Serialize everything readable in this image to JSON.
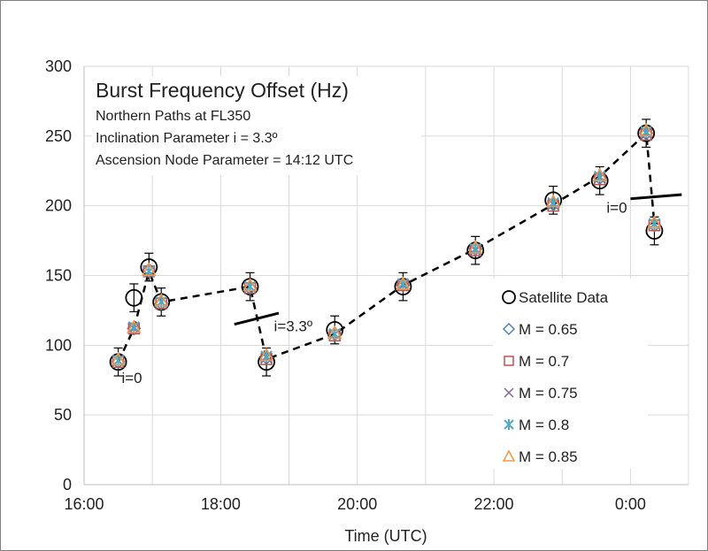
{
  "chart_data": {
    "type": "scatter",
    "title": "Burst Frequency Offset (Hz)",
    "subtitles": [
      "Northern Paths at FL350",
      "Inclination Parameter i = 3.3º",
      "Ascension Node  Parameter = 14:12 UTC"
    ],
    "xlabel": "Time (UTC)",
    "ylabel": "",
    "xlim": [
      16.0,
      24.85
    ],
    "ylim": [
      0,
      300
    ],
    "x_ticks": [
      16,
      18,
      20,
      22,
      24
    ],
    "x_tick_labels": [
      "16:00",
      "18:00",
      "20:00",
      "22:00",
      "0:00"
    ],
    "y_ticks": [
      0,
      50,
      100,
      150,
      200,
      250,
      300
    ],
    "y_tick_labels": [
      "0",
      "50",
      "100",
      "150",
      "200",
      "250",
      "300"
    ],
    "grid": true,
    "legend_position": "right",
    "satellite_data": {
      "name": "Satellite Data",
      "x": [
        16.5,
        16.73,
        16.95,
        17.13,
        18.43,
        18.67,
        19.67,
        20.67,
        21.73,
        22.87,
        23.55,
        24.23,
        24.35
      ],
      "y": [
        88,
        134,
        156,
        131,
        142,
        88,
        111,
        142,
        168,
        204,
        218,
        252,
        182
      ],
      "err": [
        10,
        10,
        10,
        10,
        10,
        10,
        10,
        10,
        10,
        10,
        10,
        10,
        10
      ]
    },
    "model_x": [
      16.5,
      16.73,
      16.95,
      17.13,
      18.43,
      18.67,
      19.67,
      20.67,
      21.73,
      22.87,
      23.55,
      24.23,
      24.35
    ],
    "series": [
      {
        "name": "M = 0.65",
        "marker": "diamond",
        "color": "#4f81bd",
        "values": [
          88,
          112,
          154,
          130,
          141,
          91,
          108,
          143,
          169,
          201,
          220,
          252,
          186
        ]
      },
      {
        "name": "M = 0.7",
        "marker": "square",
        "color": "#c0504d",
        "values": [
          88,
          112,
          153,
          130,
          141,
          90,
          107,
          143,
          168,
          200,
          219,
          251,
          186
        ]
      },
      {
        "name": "M = 0.75",
        "marker": "x",
        "color": "#8064a2",
        "values": [
          89,
          112,
          153,
          131,
          142,
          91,
          108,
          143,
          168,
          201,
          220,
          252,
          187
        ]
      },
      {
        "name": "M = 0.8",
        "marker": "star",
        "color": "#4bacc6",
        "values": [
          89,
          113,
          153,
          131,
          142,
          92,
          108,
          144,
          169,
          202,
          221,
          253,
          187
        ]
      },
      {
        "name": "M = 0.85",
        "marker": "triangle",
        "color": "#f79646",
        "values": [
          90,
          113,
          154,
          132,
          143,
          93,
          109,
          144,
          170,
          203,
          222,
          254,
          188
        ]
      }
    ],
    "dashed_path": {
      "x": [
        16.5,
        16.73,
        16.95,
        17.13,
        18.43,
        18.67,
        19.67,
        20.67,
        21.73,
        22.87,
        23.55,
        24.23,
        24.35
      ],
      "y": [
        88,
        112,
        153,
        131,
        142,
        90,
        108,
        143,
        169,
        201,
        221,
        252,
        187
      ]
    },
    "annotations": [
      {
        "text": "i=0",
        "x": 16.55,
        "y": 73
      },
      {
        "text": "i=3.3º",
        "x": 18.78,
        "y": 110
      },
      {
        "text": "i=0",
        "x": 23.65,
        "y": 195
      }
    ],
    "inclination_marks": [
      {
        "x": [
          18.2,
          18.85
        ],
        "y": [
          115,
          123
        ]
      },
      {
        "x": [
          24.0,
          24.75
        ],
        "y": [
          205,
          208
        ]
      }
    ]
  }
}
